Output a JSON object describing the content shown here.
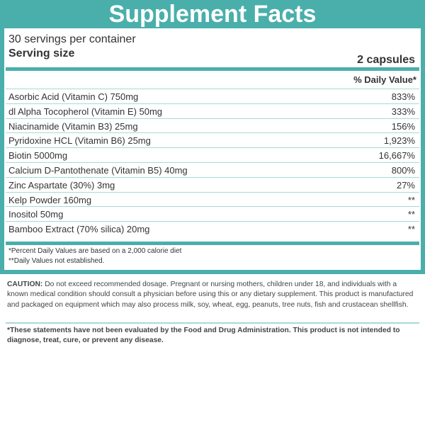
{
  "title": "Supplement Facts",
  "servings": "30 servings per container",
  "serving_size_label": "Serving size",
  "serving_size_value": "2 capsules",
  "dv_header": "% Daily Value*",
  "rows": [
    {
      "name": "Asorbic Acid (Vitamin C) 750mg",
      "dv": "833%"
    },
    {
      "name": "dl Alpha Tocopherol (Vitamin E) 50mg",
      "dv": "333%"
    },
    {
      "name": "Niacinamide (Vitamin B3) 25mg",
      "dv": "156%"
    },
    {
      "name": "Pyridoxine HCL (Vitamin B6) 25mg",
      "dv": "1,923%"
    },
    {
      "name": "Biotin 5000mg",
      "dv": "16,667%"
    },
    {
      "name": "Calcium D-Pantothenate (Vitamin B5) 40mg",
      "dv": "800%"
    },
    {
      "name": "Zinc Aspartate (30%) 3mg",
      "dv": "27%"
    },
    {
      "name": "Kelp Powder 160mg",
      "dv": "**"
    },
    {
      "name": "Inositol 50mg",
      "dv": "**"
    },
    {
      "name": "Bamboo Extract (70% silica) 20mg",
      "dv": "**"
    }
  ],
  "footnote1": "*Percent Daily Values are based on a 2,000 calorie diet",
  "footnote2": "**Daily Values not established.",
  "caution_label": "CAUTION:",
  "caution_text": " Do not exceed recommended dosage. Pregnant or nursing mothers, children under 18, and individuals with a known medical condition should consult a physician before using this or any dietary supplement. This product is manufactured and packaged on equipment which may also process milk, soy, wheat, egg, peanuts, tree nuts, fish and crustacean shellfish.",
  "fda": "*These statements have not been evaluated by the Food and Drug Administration. This product is not intended to diagnose, treat, cure, or prevent any disease.",
  "colors": {
    "accent": "#4aafab",
    "rule": "#a8d8d5"
  }
}
